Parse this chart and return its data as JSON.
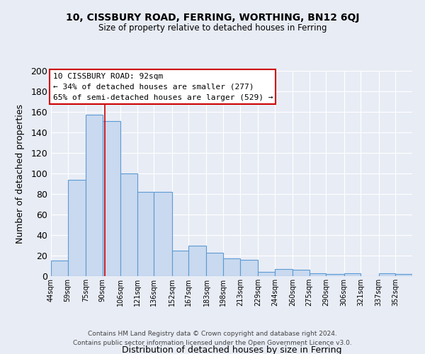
{
  "title1": "10, CISSBURY ROAD, FERRING, WORTHING, BN12 6QJ",
  "title2": "Size of property relative to detached houses in Ferring",
  "xlabel": "Distribution of detached houses by size in Ferring",
  "ylabel": "Number of detached properties",
  "bar_labels": [
    "44sqm",
    "59sqm",
    "75sqm",
    "90sqm",
    "106sqm",
    "121sqm",
    "136sqm",
    "152sqm",
    "167sqm",
    "183sqm",
    "198sqm",
    "213sqm",
    "229sqm",
    "244sqm",
    "260sqm",
    "275sqm",
    "290sqm",
    "306sqm",
    "321sqm",
    "337sqm",
    "352sqm"
  ],
  "bar_heights": [
    15,
    94,
    157,
    151,
    100,
    82,
    82,
    25,
    30,
    23,
    17,
    16,
    4,
    7,
    6,
    3,
    2,
    3,
    0,
    3,
    2
  ],
  "bin_edges": [
    44,
    59,
    75,
    90,
    106,
    121,
    136,
    152,
    167,
    183,
    198,
    213,
    229,
    244,
    260,
    275,
    290,
    306,
    321,
    337,
    352,
    367
  ],
  "bar_color": "#c9d9ef",
  "bar_edge_color": "#5b9bd5",
  "property_value": 92,
  "red_line_color": "#cc0000",
  "annotation_line1": "10 CISSBURY ROAD: 92sqm",
  "annotation_line2": "← 34% of detached houses are smaller (277)",
  "annotation_line3": "65% of semi-detached houses are larger (529) →",
  "annotation_box_color": "#ffffff",
  "annotation_box_edge_color": "#cc0000",
  "ylim": [
    0,
    200
  ],
  "yticks": [
    0,
    20,
    40,
    60,
    80,
    100,
    120,
    140,
    160,
    180,
    200
  ],
  "background_color": "#e8ecf5",
  "grid_color": "#ffffff",
  "footer_line1": "Contains HM Land Registry data © Crown copyright and database right 2024.",
  "footer_line2": "Contains public sector information licensed under the Open Government Licence v3.0."
}
